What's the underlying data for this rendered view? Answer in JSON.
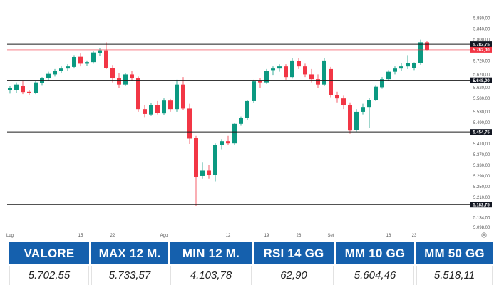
{
  "chart_data": {
    "type": "candlestick",
    "colors": {
      "up": "#0b9981",
      "down": "#f23645",
      "level_line": "#1c1c1c",
      "last_line": "#f23645",
      "label_bg": "#131722"
    },
    "y_ticks": [
      "5.880,00",
      "5.840,00",
      "5.800,00",
      "5.760,00",
      "5.720,00",
      "5.670,00",
      "5.620,00",
      "5.580,00",
      "5.530,00",
      "5.490,00",
      "5.450,00",
      "5.410,00",
      "5.370,00",
      "5.330,00",
      "5.290,00",
      "5.250,00",
      "5.210,00",
      "5.170,00",
      "5.134,00",
      "5.098,00"
    ],
    "y_tick_values": [
      5880,
      5840,
      5800,
      5760,
      5720,
      5670,
      5620,
      5580,
      5530,
      5490,
      5450,
      5410,
      5370,
      5330,
      5290,
      5250,
      5210,
      5170,
      5134,
      5098
    ],
    "ylim": [
      5090,
      5895
    ],
    "x_ticks": [
      "Lug",
      "15",
      "22",
      "Ago",
      "12",
      "19",
      "26",
      "Set",
      "16",
      "23"
    ],
    "x_tick_index": [
      0,
      11,
      16,
      24,
      34,
      40,
      45,
      50,
      59,
      63
    ],
    "levels": [
      {
        "value": 5782.75,
        "label": "5.782,75"
      },
      {
        "value": 5648.0,
        "label": "5.648,00"
      },
      {
        "value": 5454.75,
        "label": "5.454,75"
      },
      {
        "value": 5182.75,
        "label": "5.182,75"
      }
    ],
    "last_price": {
      "value": 5762.0,
      "label": "5.762,00"
    },
    "candles": [
      {
        "o": 5612,
        "h": 5628,
        "l": 5598,
        "c": 5618
      },
      {
        "o": 5612,
        "h": 5640,
        "l": 5600,
        "c": 5632
      },
      {
        "o": 5628,
        "h": 5646,
        "l": 5596,
        "c": 5604
      },
      {
        "o": 5605,
        "h": 5612,
        "l": 5592,
        "c": 5600
      },
      {
        "o": 5600,
        "h": 5648,
        "l": 5596,
        "c": 5640
      },
      {
        "o": 5638,
        "h": 5660,
        "l": 5630,
        "c": 5655
      },
      {
        "o": 5655,
        "h": 5680,
        "l": 5648,
        "c": 5672
      },
      {
        "o": 5670,
        "h": 5690,
        "l": 5662,
        "c": 5684
      },
      {
        "o": 5684,
        "h": 5700,
        "l": 5676,
        "c": 5692
      },
      {
        "o": 5692,
        "h": 5708,
        "l": 5684,
        "c": 5700
      },
      {
        "o": 5698,
        "h": 5742,
        "l": 5692,
        "c": 5735
      },
      {
        "o": 5736,
        "h": 5748,
        "l": 5700,
        "c": 5710
      },
      {
        "o": 5710,
        "h": 5722,
        "l": 5702,
        "c": 5716
      },
      {
        "o": 5716,
        "h": 5758,
        "l": 5710,
        "c": 5752
      },
      {
        "o": 5750,
        "h": 5768,
        "l": 5740,
        "c": 5760
      },
      {
        "o": 5760,
        "h": 5790,
        "l": 5690,
        "c": 5695
      },
      {
        "o": 5695,
        "h": 5705,
        "l": 5640,
        "c": 5655
      },
      {
        "o": 5655,
        "h": 5675,
        "l": 5620,
        "c": 5632
      },
      {
        "o": 5632,
        "h": 5676,
        "l": 5626,
        "c": 5670
      },
      {
        "o": 5670,
        "h": 5682,
        "l": 5648,
        "c": 5655
      },
      {
        "o": 5655,
        "h": 5662,
        "l": 5530,
        "c": 5540
      },
      {
        "o": 5540,
        "h": 5556,
        "l": 5510,
        "c": 5522
      },
      {
        "o": 5520,
        "h": 5562,
        "l": 5514,
        "c": 5555
      },
      {
        "o": 5555,
        "h": 5570,
        "l": 5520,
        "c": 5526
      },
      {
        "o": 5524,
        "h": 5580,
        "l": 5518,
        "c": 5572
      },
      {
        "o": 5572,
        "h": 5578,
        "l": 5530,
        "c": 5540
      },
      {
        "o": 5540,
        "h": 5650,
        "l": 5530,
        "c": 5632
      },
      {
        "o": 5632,
        "h": 5660,
        "l": 5535,
        "c": 5542
      },
      {
        "o": 5542,
        "h": 5560,
        "l": 5410,
        "c": 5430
      },
      {
        "o": 5432,
        "h": 5440,
        "l": 5178,
        "c": 5285
      },
      {
        "o": 5290,
        "h": 5340,
        "l": 5280,
        "c": 5310
      },
      {
        "o": 5310,
        "h": 5330,
        "l": 5280,
        "c": 5295
      },
      {
        "o": 5295,
        "h": 5412,
        "l": 5270,
        "c": 5405
      },
      {
        "o": 5405,
        "h": 5428,
        "l": 5390,
        "c": 5420
      },
      {
        "o": 5420,
        "h": 5440,
        "l": 5405,
        "c": 5412
      },
      {
        "o": 5412,
        "h": 5490,
        "l": 5405,
        "c": 5485
      },
      {
        "o": 5485,
        "h": 5512,
        "l": 5478,
        "c": 5506
      },
      {
        "o": 5506,
        "h": 5575,
        "l": 5500,
        "c": 5570
      },
      {
        "o": 5570,
        "h": 5650,
        "l": 5564,
        "c": 5644
      },
      {
        "o": 5646,
        "h": 5655,
        "l": 5620,
        "c": 5640
      },
      {
        "o": 5640,
        "h": 5690,
        "l": 5634,
        "c": 5684
      },
      {
        "o": 5686,
        "h": 5700,
        "l": 5668,
        "c": 5692
      },
      {
        "o": 5692,
        "h": 5708,
        "l": 5680,
        "c": 5700
      },
      {
        "o": 5700,
        "h": 5708,
        "l": 5650,
        "c": 5660
      },
      {
        "o": 5660,
        "h": 5730,
        "l": 5654,
        "c": 5722
      },
      {
        "o": 5720,
        "h": 5732,
        "l": 5690,
        "c": 5700
      },
      {
        "o": 5700,
        "h": 5710,
        "l": 5660,
        "c": 5670
      },
      {
        "o": 5670,
        "h": 5690,
        "l": 5640,
        "c": 5652
      },
      {
        "o": 5652,
        "h": 5670,
        "l": 5620,
        "c": 5632
      },
      {
        "o": 5632,
        "h": 5730,
        "l": 5626,
        "c": 5722
      },
      {
        "o": 5690,
        "h": 5698,
        "l": 5584,
        "c": 5592
      },
      {
        "o": 5592,
        "h": 5605,
        "l": 5565,
        "c": 5580
      },
      {
        "o": 5580,
        "h": 5590,
        "l": 5540,
        "c": 5556
      },
      {
        "o": 5556,
        "h": 5565,
        "l": 5448,
        "c": 5460
      },
      {
        "o": 5462,
        "h": 5540,
        "l": 5456,
        "c": 5530
      },
      {
        "o": 5530,
        "h": 5560,
        "l": 5520,
        "c": 5548
      },
      {
        "o": 5548,
        "h": 5582,
        "l": 5470,
        "c": 5574
      },
      {
        "o": 5574,
        "h": 5630,
        "l": 5570,
        "c": 5624
      },
      {
        "o": 5622,
        "h": 5660,
        "l": 5616,
        "c": 5652
      },
      {
        "o": 5652,
        "h": 5686,
        "l": 5646,
        "c": 5680
      },
      {
        "o": 5680,
        "h": 5700,
        "l": 5670,
        "c": 5692
      },
      {
        "o": 5692,
        "h": 5712,
        "l": 5684,
        "c": 5700
      },
      {
        "o": 5700,
        "h": 5742,
        "l": 5690,
        "c": 5712
      },
      {
        "o": 5694,
        "h": 5715,
        "l": 5686,
        "c": 5712
      },
      {
        "o": 5712,
        "h": 5800,
        "l": 5706,
        "c": 5790
      },
      {
        "o": 5790,
        "h": 5795,
        "l": 5760,
        "c": 5762
      }
    ]
  },
  "stats": {
    "headers": [
      "VALORE",
      "MAX 12 M.",
      "MIN 12 M.",
      "RSI 14 GG",
      "MM 10 GG",
      "MM 50 GG"
    ],
    "values": [
      "5.702,55",
      "5.733,57",
      "4.103,78",
      "62,90",
      "5.604,46",
      "5.518,11"
    ]
  }
}
